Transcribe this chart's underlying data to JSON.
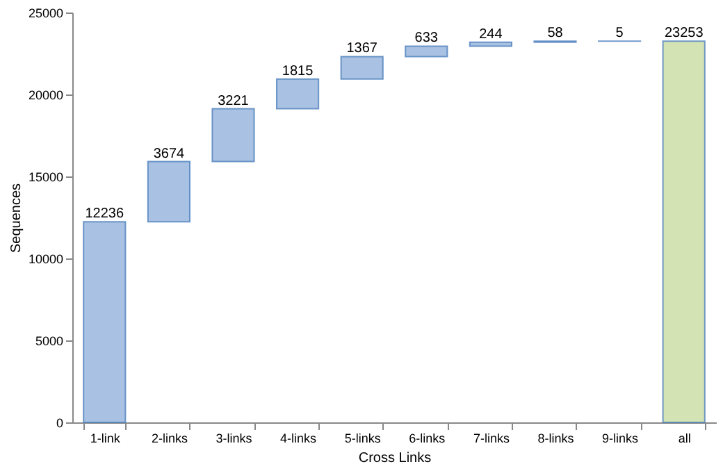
{
  "chart_data": {
    "type": "bar",
    "xlabel": "Cross Links",
    "ylabel": "Sequences",
    "categories": [
      "1-link",
      "2-links",
      "3-links",
      "4-links",
      "5-links",
      "6-links",
      "7-links",
      "8-links",
      "9-links",
      "all"
    ],
    "values": [
      12236,
      3674,
      3221,
      1815,
      1367,
      633,
      244,
      58,
      5,
      23253
    ],
    "base": [
      0,
      12236,
      15910,
      19131,
      20946,
      22313,
      22946,
      23190,
      23248,
      0
    ],
    "colors": [
      "#a9c1e2",
      "#a9c1e2",
      "#a9c1e2",
      "#a9c1e2",
      "#a9c1e2",
      "#a9c1e2",
      "#a9c1e2",
      "#a9c1e2",
      "#a9c1e2",
      "#d3e3b4"
    ],
    "ylim": [
      0,
      25000
    ],
    "yticks": [
      0,
      5000,
      10000,
      15000,
      20000,
      25000
    ],
    "data_labels": true,
    "grid": false
  }
}
